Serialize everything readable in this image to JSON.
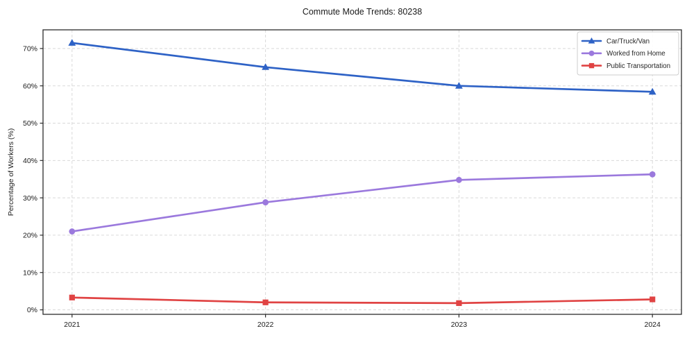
{
  "figure": {
    "title": "Commute Mode Trends: 80238"
  },
  "chart_data": {
    "type": "line",
    "title": "Commute Mode Trends: 80238",
    "xlabel": "",
    "ylabel": "Percentage of Workers (%)",
    "x": [
      2021,
      2022,
      2023,
      2024
    ],
    "x_tick_labels": [
      "2021",
      "2022",
      "2023",
      "2024"
    ],
    "y_ticks": [
      0,
      10,
      20,
      30,
      40,
      50,
      60,
      70
    ],
    "y_tick_labels": [
      "0%",
      "10%",
      "20%",
      "30%",
      "40%",
      "50%",
      "60%",
      "70%"
    ],
    "xlim": [
      2020.85,
      2024.15
    ],
    "ylim": [
      -1.2,
      75.0
    ],
    "grid": true,
    "grid_style": "dashed",
    "legend_position": "upper right",
    "legend_entries": [
      "Car/Truck/Van",
      "Worked from Home",
      "Public Transportation"
    ],
    "series": [
      {
        "name": "Car/Truck/Van",
        "marker": "triangle",
        "color": "#2e62c6",
        "values": [
          71.5,
          65.0,
          60.0,
          58.4
        ]
      },
      {
        "name": "Worked from Home",
        "marker": "circle",
        "color": "#9b79dd",
        "values": [
          21.0,
          28.8,
          34.8,
          36.3
        ]
      },
      {
        "name": "Public Transportation",
        "marker": "square",
        "color": "#e04343",
        "values": [
          3.3,
          2.0,
          1.8,
          2.8
        ]
      }
    ],
    "colors": {
      "grid": "#d9d9d9",
      "spine": "#2b2b2b",
      "background": "#ffffff",
      "legend_border": "#cccccc",
      "text": "#1a1a1a"
    }
  }
}
